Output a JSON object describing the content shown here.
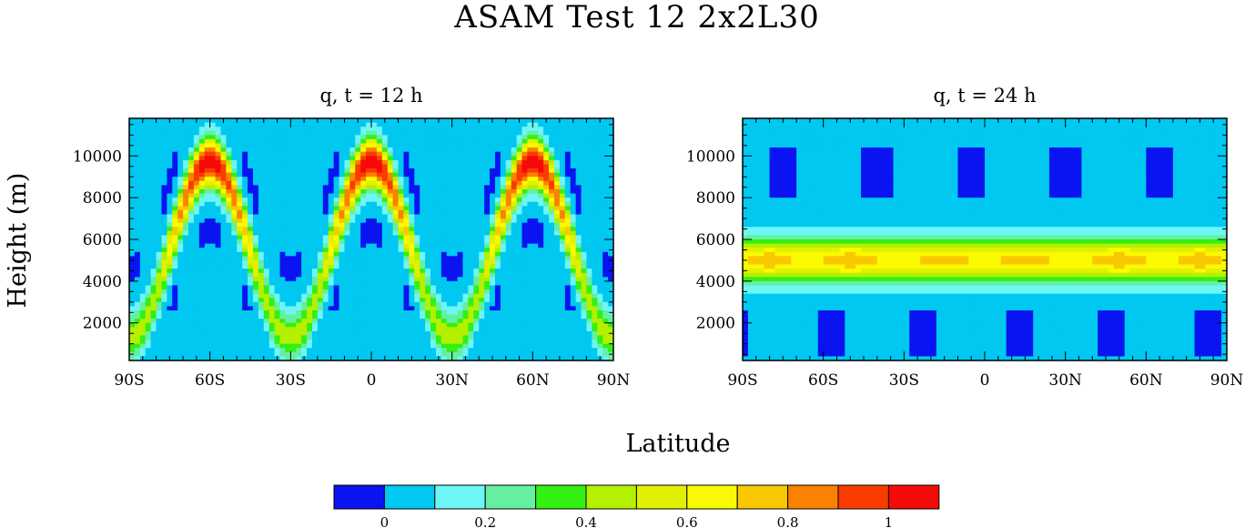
{
  "figure": {
    "title": "ASAM Test 12 2x2L30",
    "xlabel": "Latitude",
    "ylabel": "Height (m)"
  },
  "chart_data": [
    {
      "type": "heatmap",
      "title": "q, t = 12 h",
      "xlim": [
        -90,
        90
      ],
      "ylim": [
        200,
        11800
      ],
      "x_ticks": [
        -90,
        -60,
        -30,
        0,
        30,
        60,
        90
      ],
      "x_tick_labels": [
        "90S",
        "60S",
        "30S",
        "0",
        "30N",
        "60N",
        "90N"
      ],
      "y_ticks": [
        2000,
        4000,
        6000,
        8000,
        10000
      ],
      "y_tick_labels": [
        "2000",
        "4000",
        "6000",
        "8000",
        "10000"
      ],
      "field": "tracer q advected by deformational flow; four band crests near 65S, 0, 60N at 8000-10000 m and troughs near 30S, 30N at ~1200 m",
      "peak_value": 1.0
    },
    {
      "type": "heatmap",
      "title": "q, t = 24 h",
      "xlim": [
        -90,
        90
      ],
      "ylim": [
        200,
        11800
      ],
      "x_ticks": [
        -90,
        -60,
        -30,
        0,
        30,
        60,
        90
      ],
      "x_tick_labels": [
        "90S",
        "60S",
        "30S",
        "0",
        "30N",
        "60N",
        "90N"
      ],
      "y_ticks": [
        2000,
        4000,
        6000,
        8000,
        10000
      ],
      "y_tick_labels": [
        "2000",
        "4000",
        "6000",
        "8000",
        "10000"
      ],
      "field": "tracer q returned to horizontal band centred at 5000 m with small maxima near 80S, 50S, 15S, 15N, 50N, 80N",
      "peak_value": 0.85
    }
  ],
  "colorbar": {
    "colors": [
      "#0a14f0",
      "#00c8f0",
      "#6ef5f5",
      "#64f0a0",
      "#32f014",
      "#b4f000",
      "#e1f000",
      "#fafa00",
      "#fac800",
      "#fa8200",
      "#fa3c00",
      "#f50a0a"
    ],
    "ticks": [
      0,
      0.2,
      0.4,
      0.6,
      0.8,
      1
    ],
    "tick_labels": [
      "0",
      "0.2",
      "0.4",
      "0.6",
      "0.8",
      "1"
    ],
    "range": [
      -0.1,
      1.1
    ]
  }
}
